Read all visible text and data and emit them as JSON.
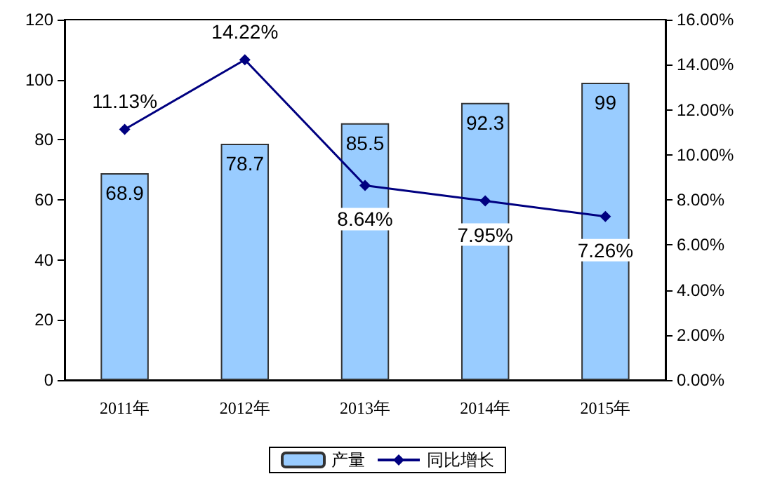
{
  "chart_data": {
    "type": "bar",
    "categories": [
      "2011年",
      "2012年",
      "2013年",
      "2014年",
      "2015年"
    ],
    "series": [
      {
        "name": "产量",
        "color": "#99ccff",
        "values": [
          68.9,
          78.7,
          85.5,
          92.3,
          99
        ],
        "value_labels": [
          "68.9",
          "78.7",
          "85.5",
          "92.3",
          "99"
        ]
      },
      {
        "name": "同比增长",
        "type": "line",
        "axis": "y2",
        "color": "#000080",
        "values": [
          11.13,
          14.22,
          8.64,
          7.95,
          7.26
        ],
        "value_labels": [
          "11.13%",
          "14.22%",
          "8.64%",
          "7.95%",
          "7.26%"
        ]
      }
    ],
    "ylim": [
      0,
      120
    ],
    "yticks": [
      0,
      20,
      40,
      60,
      80,
      100,
      120
    ],
    "y2lim": [
      0,
      16
    ],
    "y2ticks": [
      {
        "value": 0,
        "label": "0.00%"
      },
      {
        "value": 2,
        "label": "2.00%"
      },
      {
        "value": 4,
        "label": "4.00%"
      },
      {
        "value": 6,
        "label": "6.00%"
      },
      {
        "value": 8,
        "label": "8.00%"
      },
      {
        "value": 10,
        "label": "10.00%"
      },
      {
        "value": 12,
        "label": "12.00%"
      },
      {
        "value": 14,
        "label": "14.00%"
      },
      {
        "value": 16,
        "label": "16.00%"
      }
    ],
    "grid": false,
    "legend": "bottom",
    "marker": "diamond",
    "line_style": "solid"
  }
}
